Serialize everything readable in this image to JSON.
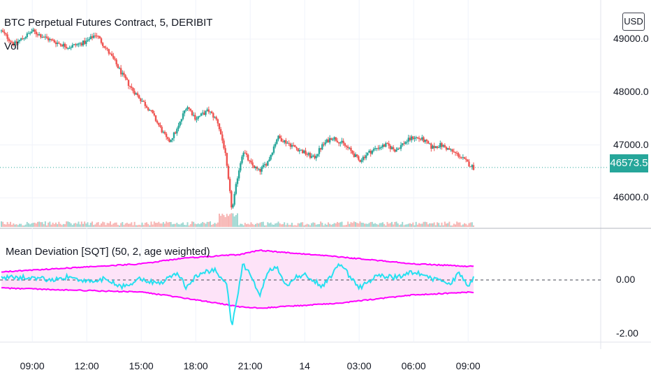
{
  "title": "BTC Perpetual Futures Contract, 5, DERIBIT",
  "volume_label": "Vol",
  "currency_button": "USD",
  "last_price_label": "46573.5",
  "indicator_title": "Mean Deviation [SQT] (50, 2, age weighted)",
  "colors": {
    "up": "#26a69a",
    "down": "#ef5350",
    "band": "#ff00ff",
    "band_fill": "#fde3f8",
    "oscillator": "#26e0f0",
    "last_price_line": "#26a69a",
    "zero_line": "#434651"
  },
  "chart_data": [
    {
      "type": "candlestick",
      "title": "BTC Perpetual Futures Contract, 5, DERIBIT",
      "y_axis_ticks": [
        "49000.0",
        "48000.0",
        "47000.0",
        "46000.0"
      ],
      "ylim": [
        45600,
        49400
      ],
      "last_price": 46573.5,
      "x_tick_labels": [
        "09:00",
        "12:00",
        "15:00",
        "18:00",
        "21:00",
        "14",
        "03:00",
        "06:00",
        "09:00"
      ],
      "price_path": [
        [
          7.3,
          49150
        ],
        [
          8.0,
          48900
        ],
        [
          9.0,
          49150
        ],
        [
          10.0,
          48980
        ],
        [
          11.0,
          48850
        ],
        [
          12.0,
          48950
        ],
        [
          12.5,
          49100
        ],
        [
          13.0,
          48850
        ],
        [
          13.5,
          48600
        ],
        [
          14.0,
          48300
        ],
        [
          14.5,
          48050
        ],
        [
          15.0,
          47850
        ],
        [
          15.5,
          47650
        ],
        [
          16.0,
          47350
        ],
        [
          16.5,
          47050
        ],
        [
          17.0,
          47300
        ],
        [
          17.5,
          47750
        ],
        [
          18.0,
          47500
        ],
        [
          18.7,
          47650
        ],
        [
          19.2,
          47450
        ],
        [
          19.6,
          46900
        ],
        [
          20.0,
          45750
        ],
        [
          20.3,
          46400
        ],
        [
          20.6,
          46900
        ],
        [
          21.0,
          46650
        ],
        [
          21.5,
          46500
        ],
        [
          22.0,
          46700
        ],
        [
          22.5,
          47150
        ],
        [
          23.0,
          47050
        ],
        [
          23.5,
          46950
        ],
        [
          24.0,
          46850
        ],
        [
          24.5,
          46750
        ],
        [
          25.0,
          47000
        ],
        [
          25.5,
          47150
        ],
        [
          26.0,
          47050
        ],
        [
          26.5,
          46900
        ],
        [
          27.0,
          46700
        ],
        [
          27.5,
          46850
        ],
        [
          28.0,
          46950
        ],
        [
          28.5,
          47000
        ],
        [
          29.0,
          46900
        ],
        [
          29.5,
          47050
        ],
        [
          30.0,
          47150
        ],
        [
          30.5,
          47100
        ],
        [
          31.0,
          46950
        ],
        [
          31.5,
          47000
        ],
        [
          32.0,
          46900
        ],
        [
          32.5,
          46800
        ],
        [
          33.0,
          46650
        ],
        [
          33.3,
          46570
        ]
      ]
    },
    {
      "type": "line",
      "title": "Mean Deviation [SQT] (50, 2, age weighted)",
      "y_axis_ticks": [
        "0.00",
        "-2.00"
      ],
      "ylim": [
        -2.05,
        1.25
      ],
      "series": [
        {
          "values_path": [
            [
              7.3,
              0.08
            ],
            [
              9,
              0.1
            ],
            [
              10,
              0.0
            ],
            [
              11,
              0.12
            ],
            [
              12,
              -0.08
            ],
            [
              13,
              0.05
            ],
            [
              14,
              -0.25
            ],
            [
              15,
              0.05
            ],
            [
              16,
              -0.15
            ],
            [
              17,
              0.25
            ],
            [
              17.5,
              -0.3
            ],
            [
              18,
              0.15
            ],
            [
              19,
              0.4
            ],
            [
              19.7,
              -0.2
            ],
            [
              20,
              -1.75
            ],
            [
              20.6,
              0.6
            ],
            [
              21,
              0.2
            ],
            [
              21.5,
              -0.6
            ],
            [
              22,
              0.35
            ],
            [
              22.5,
              0.45
            ],
            [
              23,
              -0.2
            ],
            [
              23.5,
              0.1
            ],
            [
              24,
              0.2
            ],
            [
              25,
              -0.25
            ],
            [
              26,
              0.65
            ],
            [
              26.5,
              0.1
            ],
            [
              27,
              -0.3
            ],
            [
              28,
              0.15
            ],
            [
              29,
              0.1
            ],
            [
              30,
              0.3
            ],
            [
              31,
              0.05
            ],
            [
              32,
              -0.15
            ],
            [
              32.5,
              0.25
            ],
            [
              33,
              -0.2
            ],
            [
              33.3,
              0.05
            ]
          ]
        },
        {
          "values_path": [
            [
              7.3,
              0.3
            ],
            [
              15,
              0.6
            ],
            [
              17.2,
              0.8
            ],
            [
              20.5,
              0.95
            ],
            [
              21.5,
              1.1
            ],
            [
              26,
              0.85
            ],
            [
              30,
              0.6
            ],
            [
              33.3,
              0.5
            ]
          ]
        },
        {
          "values_path": [
            [
              7.3,
              -0.3
            ],
            [
              15,
              -0.45
            ],
            [
              17.2,
              -0.65
            ],
            [
              20.5,
              -1.0
            ],
            [
              21.5,
              -1.05
            ],
            [
              26,
              -0.85
            ],
            [
              30,
              -0.55
            ],
            [
              33.3,
              -0.45
            ]
          ]
        }
      ]
    }
  ]
}
